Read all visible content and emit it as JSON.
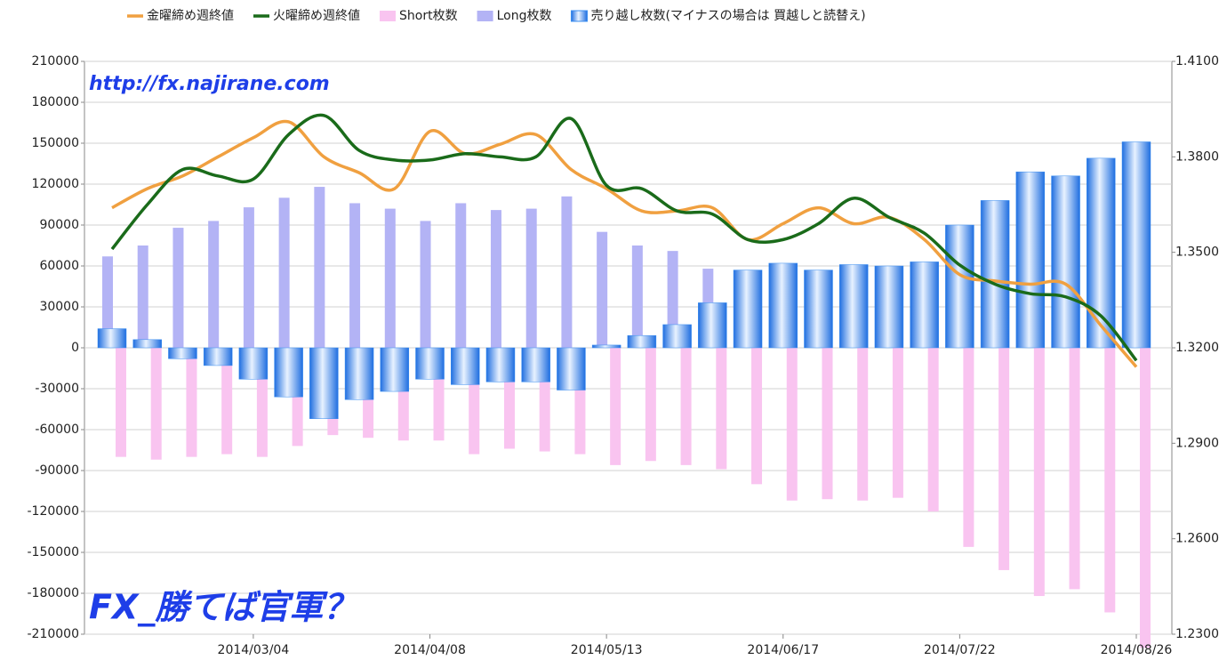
{
  "chart_data": {
    "type": "bar_line",
    "annotations": [
      "http://fx.najirane.com",
      "FX_勝てば官軍？"
    ],
    "categories": [
      null,
      null,
      null,
      null,
      "2014/03/04",
      null,
      null,
      null,
      null,
      "2014/04/08",
      null,
      null,
      null,
      null,
      "2014/05/13",
      null,
      null,
      null,
      null,
      "2014/06/17",
      null,
      null,
      null,
      null,
      "2014/07/22",
      null,
      null,
      null,
      null,
      "2014/08/26"
    ],
    "series": [
      {
        "name": "金曜締め週終値",
        "type": "line",
        "axis": "y2",
        "color": "#f0a040",
        "values": [
          1.364,
          1.37,
          1.374,
          1.38,
          1.386,
          1.391,
          1.38,
          1.375,
          1.37,
          1.388,
          1.381,
          1.384,
          1.387,
          1.376,
          1.37,
          1.363,
          1.363,
          1.364,
          1.354,
          1.359,
          1.364,
          1.359,
          1.361,
          1.354,
          1.343,
          1.341,
          1.34,
          1.34,
          1.327,
          1.314
        ]
      },
      {
        "name": "火曜締め週終値",
        "type": "line",
        "axis": "y2",
        "color": "#1a6b1a",
        "values": [
          1.351,
          1.365,
          1.376,
          1.374,
          1.373,
          1.387,
          1.393,
          1.382,
          1.379,
          1.379,
          1.381,
          1.38,
          1.38,
          1.392,
          1.371,
          1.37,
          1.363,
          1.362,
          1.354,
          1.354,
          1.359,
          1.367,
          1.361,
          1.356,
          1.346,
          1.34,
          1.337,
          1.336,
          1.33,
          1.316
        ]
      },
      {
        "name": "Short枚数",
        "type": "bar",
        "color": "#f9c4f0",
        "values": [
          -80000,
          -82000,
          -80000,
          -78000,
          -80000,
          -72000,
          -64000,
          -66000,
          -68000,
          -68000,
          -78000,
          -74000,
          -76000,
          -78000,
          -86000,
          -83000,
          -86000,
          -89000,
          -100000,
          -112000,
          -111000,
          -112000,
          -110000,
          -120000,
          -146000,
          -163000,
          -182000,
          -177000,
          -194000,
          -220000
        ]
      },
      {
        "name": "Long枚数",
        "type": "bar",
        "color": "#b3b3f5",
        "values": [
          67000,
          75000,
          88000,
          93000,
          103000,
          110000,
          118000,
          106000,
          102000,
          93000,
          106000,
          101000,
          102000,
          111000,
          85000,
          75000,
          71000,
          58000,
          44000,
          51000,
          55000,
          53000,
          51000,
          53000,
          56000,
          57000,
          55000,
          52000,
          57000,
          54000
        ]
      },
      {
        "name": "売り越し枚数(マイナスの場合は 買越しと読替え)",
        "type": "bar",
        "color": "#3a8ef0",
        "values": [
          14000,
          6000,
          -8000,
          -13000,
          -23000,
          -36000,
          -52000,
          -38000,
          -32000,
          -23000,
          -27000,
          -25000,
          -25000,
          -31000,
          2000,
          9000,
          17000,
          33000,
          57000,
          62000,
          57000,
          61000,
          60000,
          63000,
          90000,
          108000,
          129000,
          126000,
          139000,
          151000
        ]
      }
    ],
    "ylim": [
      -210000,
      210000
    ],
    "yticks": [
      -210000,
      -180000,
      -150000,
      -120000,
      -90000,
      -60000,
      -30000,
      0,
      30000,
      60000,
      90000,
      120000,
      150000,
      180000,
      210000
    ],
    "y2lim": [
      1.23,
      1.41
    ],
    "y2ticks": [
      {
        "value": 1.23,
        "label": "1.2300"
      },
      {
        "value": 1.26,
        "label": "1.2600"
      },
      {
        "value": 1.29,
        "label": "1.2900"
      },
      {
        "value": 1.32,
        "label": "1.3200"
      },
      {
        "value": 1.35,
        "label": "1.3500"
      },
      {
        "value": 1.38,
        "label": "1.3800"
      },
      {
        "value": 1.41,
        "label": "1.4100"
      }
    ],
    "grid": true,
    "legend": "top"
  }
}
